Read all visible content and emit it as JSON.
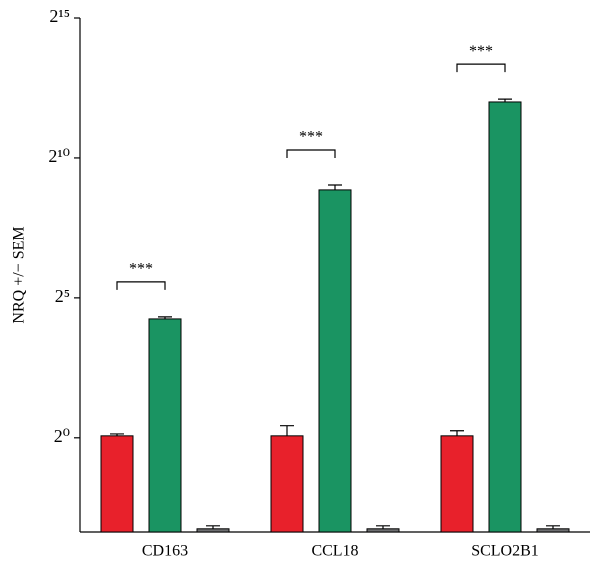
{
  "chart_data": {
    "type": "bar",
    "y_label": "NRQ +/− SEM",
    "categories": [
      "CD163",
      "CCL18",
      "SCLO2B1"
    ],
    "series": [
      {
        "color": "#e8212b",
        "values": [
          1.05,
          1.05,
          1.05
        ],
        "errors": [
          0.05,
          0.3,
          0.14
        ]
      },
      {
        "color": "#1a9462",
        "values": [
          19,
          464,
          4096
        ],
        "errors": [
          1,
          60,
          300
        ]
      },
      {
        "color": "#6d6e70",
        "values": [
          0.105,
          0.105,
          0.105
        ],
        "errors": [
          0.008,
          0.008,
          0.008
        ]
      }
    ],
    "annotations": [
      "***",
      "***",
      "***"
    ],
    "log_scale": "y",
    "log_base": 2,
    "ylim": [
      0.097,
      32768
    ],
    "yticks": [
      {
        "value": 1,
        "label": "2⁰"
      },
      {
        "value": 32,
        "label": "2⁵"
      },
      {
        "value": 1024,
        "label": "2¹⁰"
      },
      {
        "value": 32768,
        "label": "2¹⁵"
      }
    ]
  }
}
